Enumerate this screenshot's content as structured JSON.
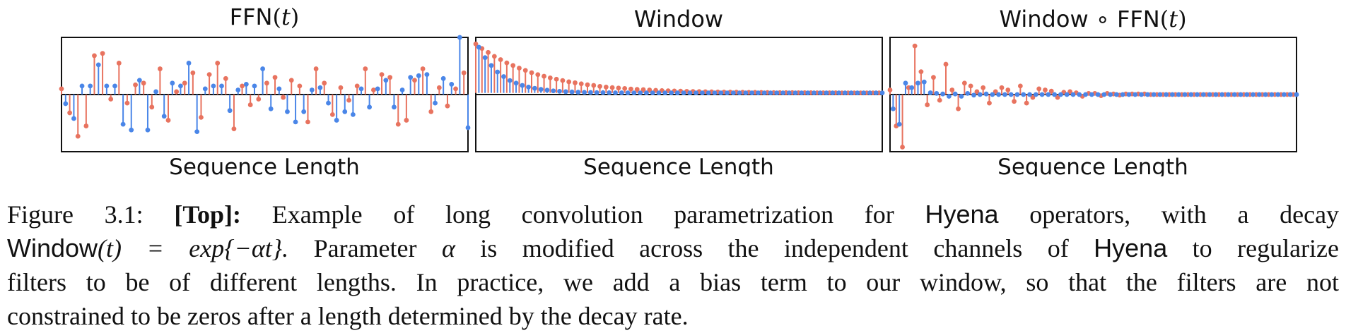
{
  "colors": {
    "red": "#e8735f",
    "blue": "#4a86e8",
    "axis": "#111111"
  },
  "panels": [
    {
      "title_prefix": "FFN",
      "title_var": "t",
      "xlabel": "Sequence Length"
    },
    {
      "title": "Window",
      "xlabel": "Sequence Length"
    },
    {
      "title_prefix": "Window ∘ FFN",
      "title_var": "t",
      "xlabel": "Sequence Length"
    }
  ],
  "chart_data": [
    {
      "type": "stem",
      "title": "FFN(t)",
      "xlabel": "Sequence Length",
      "ylabel": "",
      "ylim": [
        -1,
        1
      ],
      "series": [
        {
          "color": "red",
          "values": [
            0.1,
            -0.32,
            -0.73,
            -0.55,
            0.68,
            0.72,
            -0.08,
            0.55,
            -0.15,
            0.17,
            0.2,
            -0.22,
            0.45,
            -0.45,
            0.05,
            0.2,
            0.38,
            -0.4,
            0.35,
            0.55,
            0.28,
            -0.6,
            0.15,
            -0.18,
            -0.08,
            0.2,
            0.3,
            -0.05,
            0.25,
            0.15,
            -0.48,
            0.45,
            0.2,
            -0.35,
            0.12,
            -0.1,
            0.15,
            0.45,
            0.08,
            0.35,
            0.3,
            -0.52,
            -0.45,
            0.25,
            0.45,
            -0.3,
            0.12,
            -0.2,
            0.1,
            0.38
          ]
        },
        {
          "color": "blue",
          "values": [
            -0.16,
            -0.42,
            0.15,
            0.15,
            0.52,
            0.15,
            0.15,
            -0.52,
            -0.62,
            0.25,
            -0.62,
            0.05,
            -0.38,
            0.2,
            0.15,
            0.55,
            -0.65,
            0.1,
            0.15,
            0.15,
            -0.28,
            0.08,
            0.18,
            0.15,
            0.45,
            -0.25,
            0.1,
            -0.3,
            -0.48,
            -0.3,
            0.08,
            0.12,
            -0.15,
            -0.45,
            -0.3,
            -0.35,
            0.1,
            -0.22,
            0.1,
            0.25,
            -0.22,
            0.08,
            0.3,
            0.33,
            0.35,
            -0.15,
            0.28,
            0.18,
            1.0,
            -0.58
          ]
        }
      ]
    },
    {
      "type": "stem",
      "title": "Window",
      "xlabel": "Sequence Length",
      "ylabel": "",
      "ylim": [
        -0.9,
        0.85
      ],
      "note": "red curve: slower exponential decay; blue curve: faster exponential decay; both decay toward 0",
      "series": [
        {
          "color": "red",
          "values": [
            0.75,
            0.68,
            0.62,
            0.56,
            0.51,
            0.46,
            0.42,
            0.38,
            0.345,
            0.31,
            0.28,
            0.255,
            0.23,
            0.21,
            0.19,
            0.17,
            0.155,
            0.14,
            0.125,
            0.115,
            0.1,
            0.09,
            0.082,
            0.075,
            0.068,
            0.06,
            0.055,
            0.05,
            0.045,
            0.04,
            0.036,
            0.033,
            0.03,
            0.027,
            0.024,
            0.022,
            0.02,
            0.018,
            0.016,
            0.014,
            0.013,
            0.012,
            0.011,
            0.01,
            0.009,
            0.008,
            0.007,
            0.006,
            0.005,
            0.005,
            0.004,
            0.004,
            0.003,
            0.003,
            0.003,
            0.002,
            0.002,
            0.002,
            0.002,
            0.001,
            0.001,
            0.001,
            0.001,
            0.001,
            0.001,
            0.001
          ]
        },
        {
          "color": "blue",
          "values": [
            0.7,
            0.54,
            0.42,
            0.32,
            0.25,
            0.19,
            0.15,
            0.115,
            0.09,
            0.07,
            0.054,
            0.042,
            0.032,
            0.025,
            0.019,
            0.015,
            0.011,
            0.009,
            0.007,
            0.005,
            0.004,
            0.003,
            0.002,
            0.002,
            0.001,
            0.001,
            0.001,
            0.001,
            0,
            0,
            0,
            0,
            0,
            0,
            0,
            0,
            0,
            0,
            0,
            0,
            0,
            0,
            0,
            0,
            0,
            0,
            0,
            0,
            0,
            0,
            0,
            0,
            0,
            0,
            0,
            0,
            0,
            0,
            0,
            0,
            0,
            0,
            0,
            0,
            0,
            0
          ]
        }
      ]
    },
    {
      "type": "stem",
      "title": "Window ∘ FFN(t)",
      "xlabel": "Sequence Length",
      "ylabel": "",
      "ylim": [
        -1,
        1
      ],
      "series": [
        {
          "color": "red",
          "values": [
            0.08,
            -0.55,
            -0.92,
            0.12,
            0.85,
            0.4,
            -0.18,
            0.3,
            -0.1,
            0.53,
            0.08,
            -0.25,
            0.2,
            0.15,
            0.05,
            0.12,
            -0.15,
            0.05,
            0.12,
            0.08,
            -0.12,
            0.15,
            -0.15,
            -0.05,
            0.1,
            0.08,
            0.06,
            -0.05,
            0.04,
            0.05,
            0.03,
            -0.03,
            0.02,
            0.02,
            -0.02,
            0.02,
            0.01,
            -0.01,
            0.01,
            0.01,
            0.01,
            0.01,
            0,
            0,
            0,
            0,
            0,
            0,
            0,
            0,
            0,
            0,
            0,
            0,
            0,
            0,
            0,
            0,
            0,
            0,
            0,
            0,
            0,
            0,
            0,
            0
          ]
        },
        {
          "color": "blue",
          "values": [
            -0.25,
            -0.52,
            0.2,
            0.12,
            0.2,
            0.22,
            0.03,
            0.02,
            0.01,
            -0.03,
            0.01,
            -0.03,
            0.02,
            -0.01,
            0,
            0.01,
            0,
            0,
            0,
            0,
            0,
            0,
            0,
            0,
            0,
            0,
            0,
            0,
            0,
            0,
            0,
            0,
            0,
            0,
            0,
            0,
            0,
            0,
            0,
            0,
            0,
            0,
            0,
            0,
            0,
            0,
            0,
            0,
            0,
            0,
            0,
            0,
            0,
            0,
            0,
            0,
            0,
            0,
            0,
            0,
            0,
            0,
            0,
            0,
            0,
            0
          ]
        }
      ]
    }
  ],
  "caption": {
    "figure_label": "Figure 3.1:",
    "top_label": "[Top]:",
    "l1_text": "Example of long convolution parametrization for",
    "hyena": "Hyena",
    "l1_tail": "operators, with a decay",
    "window_word": "Window",
    "l2_math": "(t) = exp{−αt}.",
    "l2_text_a": "Parameter",
    "alpha": "α",
    "l2_text_b": "is modified across the independent channels of",
    "l2_tail": "to regularize",
    "l3": "filters to be of different lengths. In practice, we add a bias term to our window, so that the filters are not",
    "l4": "constrained to be zeros after a length determined by the decay rate."
  }
}
